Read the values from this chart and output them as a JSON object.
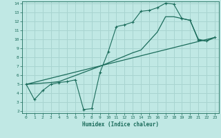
{
  "xlabel": "Humidex (Indice chaleur)",
  "bg_color": "#c0e8e4",
  "grid_color": "#a8d4d0",
  "line_color": "#1a6b5a",
  "xlim": [
    -0.5,
    23.5
  ],
  "ylim": [
    1.8,
    14.2
  ],
  "xticks": [
    0,
    1,
    2,
    3,
    4,
    5,
    6,
    7,
    8,
    9,
    10,
    11,
    12,
    13,
    14,
    15,
    16,
    17,
    18,
    19,
    20,
    21,
    22,
    23
  ],
  "yticks": [
    2,
    3,
    4,
    5,
    6,
    7,
    8,
    9,
    10,
    11,
    12,
    13,
    14
  ],
  "line1_x": [
    0,
    1,
    2,
    3,
    4,
    5,
    6,
    7,
    8,
    9,
    10,
    11,
    12,
    13,
    14,
    15,
    16,
    17,
    18,
    19,
    20,
    21,
    22,
    23
  ],
  "line1_y": [
    5.0,
    3.3,
    4.3,
    5.0,
    5.2,
    5.3,
    5.5,
    2.2,
    2.3,
    6.3,
    8.6,
    11.4,
    11.6,
    11.9,
    13.1,
    13.2,
    13.5,
    14.0,
    13.9,
    12.3,
    12.1,
    9.9,
    9.8,
    10.2
  ],
  "line2_x": [
    0,
    3,
    4,
    9,
    13,
    14,
    16,
    17,
    18,
    19,
    20,
    21,
    22,
    23
  ],
  "line2_y": [
    5.0,
    5.2,
    5.3,
    7.0,
    8.5,
    8.8,
    10.8,
    12.5,
    12.5,
    12.3,
    12.1,
    10.0,
    9.8,
    10.2
  ],
  "line3_x": [
    0,
    23
  ],
  "line3_y": [
    5.0,
    10.2
  ]
}
